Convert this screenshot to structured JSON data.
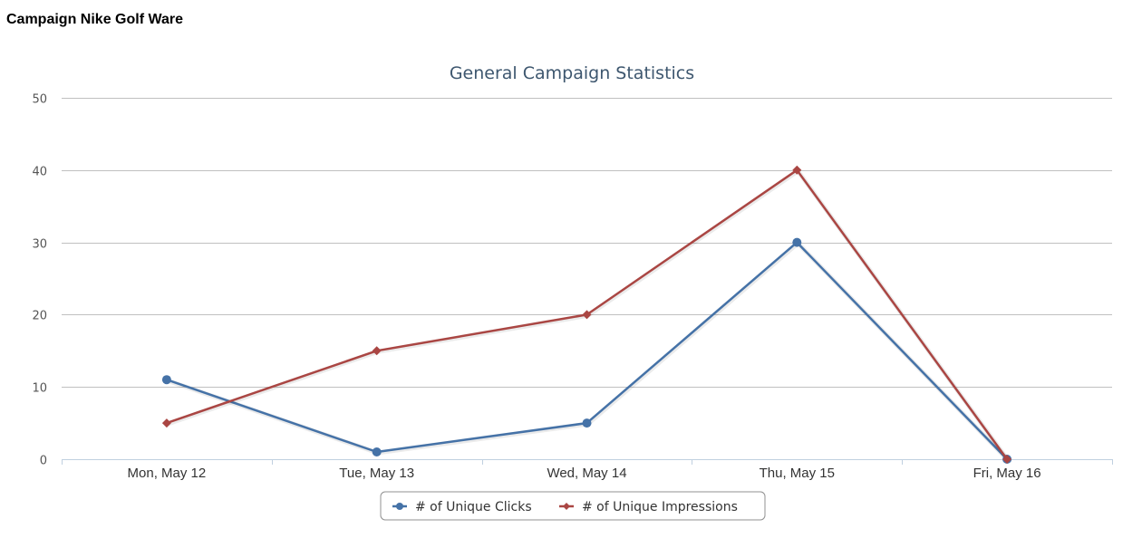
{
  "page": {
    "heading": "Campaign Nike Golf Ware"
  },
  "chart_data": {
    "type": "line",
    "title": "General Campaign Statistics",
    "categories": [
      "Mon, May 12",
      "Tue, May 13",
      "Wed, May 14",
      "Thu, May 15",
      "Fri, May 16"
    ],
    "ylim": [
      0,
      50
    ],
    "yticks": [
      0,
      10,
      20,
      30,
      40,
      50
    ],
    "grid": true,
    "legend_position": "bottom-center",
    "series": [
      {
        "name": "# of Unique Clicks",
        "values": [
          11,
          1,
          5,
          30,
          0
        ],
        "color": "#4572a7",
        "marker": "circle"
      },
      {
        "name": "# of Unique Impressions",
        "values": [
          5,
          15,
          20,
          40,
          0
        ],
        "color": "#aa4643",
        "marker": "diamond"
      }
    ]
  }
}
